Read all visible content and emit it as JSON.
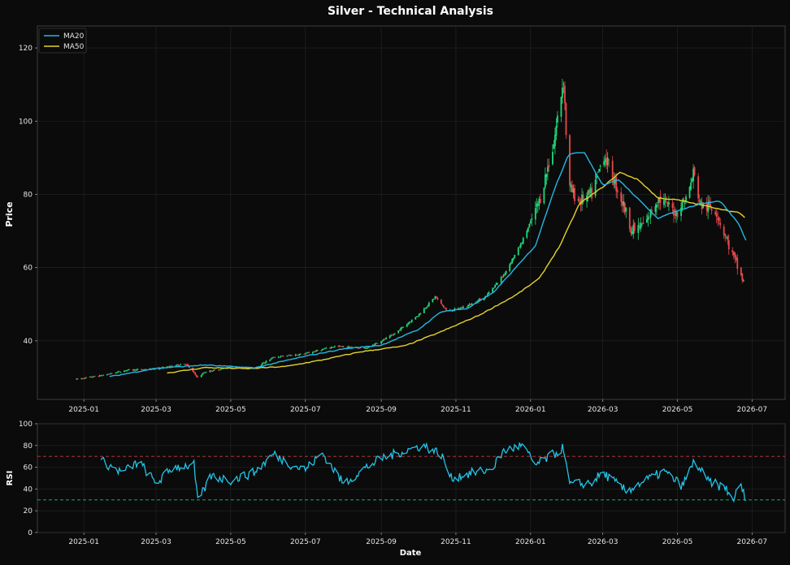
{
  "colors": {
    "background": "#0b0b0b",
    "panel": "#0b0b0b",
    "grid": "#262626",
    "axis": "#9a9a9a",
    "up": "#1fd87a",
    "down": "#e8474b",
    "ma20": "#22b8e6",
    "ma50": "#e6d22a",
    "rsi": "#22c4e8",
    "overbought": "#c83a3a",
    "oversold": "#1fc07a"
  },
  "chart_data": [
    {
      "type": "candlestick",
      "title": "Silver - Technical Analysis",
      "ylabel": "Price",
      "xlabel": "",
      "ylim": [
        24,
        126
      ],
      "xlim": [
        "2024-11-24",
        "2026-07-28"
      ],
      "x_ticks": [
        "2025-01",
        "2025-03",
        "2025-05",
        "2025-07",
        "2025-09",
        "2025-11",
        "2026-01",
        "2026-03",
        "2026-05",
        "2026-07"
      ],
      "y_ticks": [
        40,
        60,
        80,
        100,
        120
      ],
      "legend": {
        "position": "top-left",
        "entries": [
          "MA20",
          "MA50"
        ]
      },
      "grid": true,
      "price_anchors": [
        [
          "2024-12-26",
          29.5
        ],
        [
          "2025-01-15",
          30.5
        ],
        [
          "2025-02-05",
          32.0
        ],
        [
          "2025-03-01",
          32.3
        ],
        [
          "2025-03-25",
          33.8
        ],
        [
          "2025-04-04",
          30.0
        ],
        [
          "2025-04-10",
          31.5
        ],
        [
          "2025-05-01",
          32.8
        ],
        [
          "2025-05-20",
          32.5
        ],
        [
          "2025-06-05",
          35.5
        ],
        [
          "2025-07-01",
          36.5
        ],
        [
          "2025-07-25",
          38.5
        ],
        [
          "2025-08-20",
          38.0
        ],
        [
          "2025-09-10",
          41.5
        ],
        [
          "2025-10-01",
          47.0
        ],
        [
          "2025-10-15",
          52.0
        ],
        [
          "2025-10-25",
          48.0
        ],
        [
          "2025-11-10",
          49.5
        ],
        [
          "2025-11-25",
          52.0
        ],
        [
          "2025-12-10",
          58.0
        ],
        [
          "2025-12-25",
          67.0
        ],
        [
          "2026-01-08",
          78.0
        ],
        [
          "2026-01-20",
          94.0
        ],
        [
          "2026-01-28",
          112.0
        ],
        [
          "2026-02-01",
          82.0
        ],
        [
          "2026-02-10",
          78.0
        ],
        [
          "2026-02-20",
          80.0
        ],
        [
          "2026-03-02",
          91.0
        ],
        [
          "2026-03-10",
          84.0
        ],
        [
          "2026-03-18",
          77.0
        ],
        [
          "2026-03-25",
          70.0
        ],
        [
          "2026-04-05",
          72.0
        ],
        [
          "2026-04-15",
          79.0
        ],
        [
          "2026-04-30",
          75.0
        ],
        [
          "2026-05-10",
          80.0
        ],
        [
          "2026-05-14",
          86.0
        ],
        [
          "2026-05-20",
          77.0
        ],
        [
          "2026-06-01",
          76.0
        ],
        [
          "2026-06-12",
          66.0
        ],
        [
          "2026-06-24",
          56.0
        ]
      ],
      "ma20_anchors": [
        [
          "2025-01-22",
          30.2
        ],
        [
          "2025-03-01",
          32.5
        ],
        [
          "2025-04-10",
          33.4
        ],
        [
          "2025-05-20",
          32.6
        ],
        [
          "2025-07-01",
          35.8
        ],
        [
          "2025-08-01",
          37.8
        ],
        [
          "2025-09-01",
          38.8
        ],
        [
          "2025-10-01",
          43.0
        ],
        [
          "2025-10-20",
          48.0
        ],
        [
          "2025-11-10",
          48.8
        ],
        [
          "2025-12-01",
          53.0
        ],
        [
          "2025-12-20",
          60.0
        ],
        [
          "2026-01-05",
          66.0
        ],
        [
          "2026-01-20",
          81.0
        ],
        [
          "2026-02-01",
          91.0
        ],
        [
          "2026-02-14",
          91.5
        ],
        [
          "2026-03-01",
          82.5
        ],
        [
          "2026-03-14",
          84.0
        ],
        [
          "2026-04-01",
          78.0
        ],
        [
          "2026-04-15",
          73.5
        ],
        [
          "2026-05-01",
          75.5
        ],
        [
          "2026-05-20",
          77.5
        ],
        [
          "2026-06-05",
          78.2
        ],
        [
          "2026-06-20",
          72.0
        ],
        [
          "2026-06-26",
          67.5
        ]
      ],
      "ma50_anchors": [
        [
          "2025-03-10",
          31.2
        ],
        [
          "2025-04-10",
          32.7
        ],
        [
          "2025-05-15",
          32.4
        ],
        [
          "2025-06-15",
          33.0
        ],
        [
          "2025-07-15",
          34.8
        ],
        [
          "2025-08-15",
          37.0
        ],
        [
          "2025-09-20",
          38.6
        ],
        [
          "2025-10-20",
          42.5
        ],
        [
          "2025-11-20",
          47.0
        ],
        [
          "2025-12-20",
          52.5
        ],
        [
          "2026-01-08",
          57.0
        ],
        [
          "2026-01-25",
          66.0
        ],
        [
          "2026-02-10",
          77.5
        ],
        [
          "2026-03-01",
          82.0
        ],
        [
          "2026-03-15",
          86.0
        ],
        [
          "2026-03-30",
          84.0
        ],
        [
          "2026-04-15",
          79.0
        ],
        [
          "2026-05-01",
          78.5
        ],
        [
          "2026-05-15",
          77.5
        ],
        [
          "2026-06-05",
          76.0
        ],
        [
          "2026-06-20",
          75.0
        ],
        [
          "2026-06-26",
          73.5
        ]
      ]
    },
    {
      "type": "line",
      "xlabel": "Date",
      "ylabel": "RSI",
      "ylim": [
        0,
        100
      ],
      "y_ticks": [
        0,
        20,
        40,
        60,
        80,
        100
      ],
      "x_ticks": [
        "2025-01",
        "2025-03",
        "2025-05",
        "2025-07",
        "2025-09",
        "2025-11",
        "2026-01",
        "2026-03",
        "2026-05",
        "2026-07"
      ],
      "overbought": 70,
      "oversold": 30,
      "grid": true,
      "rsi_anchors": [
        [
          "2025-01-15",
          66
        ],
        [
          "2025-02-01",
          55
        ],
        [
          "2025-02-15",
          65
        ],
        [
          "2025-03-01",
          45
        ],
        [
          "2025-03-15",
          60
        ],
        [
          "2025-04-01",
          62
        ],
        [
          "2025-04-04",
          28
        ],
        [
          "2025-04-15",
          52
        ],
        [
          "2025-05-01",
          48
        ],
        [
          "2025-05-20",
          55
        ],
        [
          "2025-06-05",
          72
        ],
        [
          "2025-06-20",
          62
        ],
        [
          "2025-07-01",
          58
        ],
        [
          "2025-07-15",
          73
        ],
        [
          "2025-08-01",
          45
        ],
        [
          "2025-08-20",
          60
        ],
        [
          "2025-09-01",
          68
        ],
        [
          "2025-09-20",
          75
        ],
        [
          "2025-10-05",
          80
        ],
        [
          "2025-10-20",
          72
        ],
        [
          "2025-10-28",
          50
        ],
        [
          "2025-11-15",
          55
        ],
        [
          "2025-11-30",
          58
        ],
        [
          "2025-12-10",
          75
        ],
        [
          "2025-12-25",
          80
        ],
        [
          "2026-01-05",
          62
        ],
        [
          "2026-01-20",
          72
        ],
        [
          "2026-01-28",
          78
        ],
        [
          "2026-02-01",
          44
        ],
        [
          "2026-02-20",
          46
        ],
        [
          "2026-03-01",
          55
        ],
        [
          "2026-03-20",
          38
        ],
        [
          "2026-04-05",
          48
        ],
        [
          "2026-04-20",
          56
        ],
        [
          "2026-05-05",
          43
        ],
        [
          "2026-05-15",
          66
        ],
        [
          "2026-05-25",
          48
        ],
        [
          "2026-06-10",
          40
        ],
        [
          "2026-06-15",
          30
        ],
        [
          "2026-06-22",
          44
        ],
        [
          "2026-06-26",
          28
        ]
      ]
    }
  ]
}
